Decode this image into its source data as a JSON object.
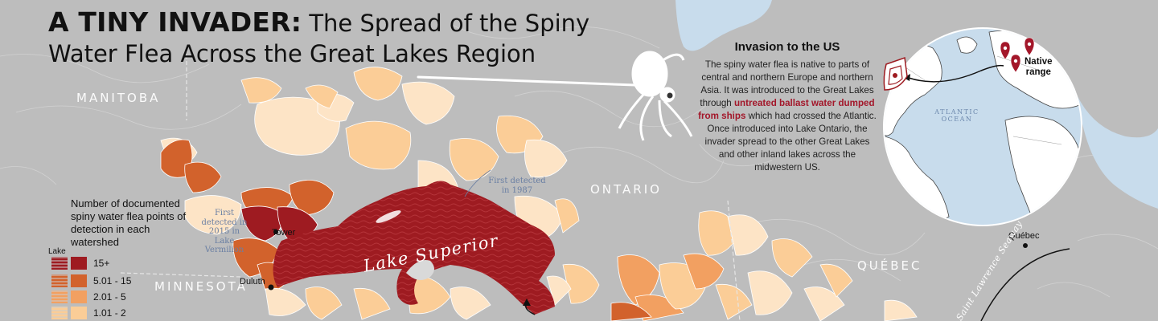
{
  "title": {
    "bold": "A TINY INVADER:",
    "line1_rest": " The Spread of the Spiny",
    "line2": "Water Flea Across the Great Lakes Region"
  },
  "regions": {
    "manitoba": "MANITOBA",
    "ontario": "ONTARIO",
    "quebec": "QUÉBEC",
    "minnesota": "MINNESOTA"
  },
  "lake_label": "Lake Superior",
  "annotations": {
    "first_detected_1987_line1": "First detected",
    "first_detected_1987_line2": "in 1987",
    "vermilion_line1": "First",
    "vermilion_line2": "detected in",
    "vermilion_line3": "2015 in Lake",
    "vermilion_line4": "Vermilion"
  },
  "cities": {
    "tower": "Tower",
    "duluth": "Duluth",
    "quebec_city": "Québec"
  },
  "seaway": "Saint Lawrence Seaway",
  "legend": {
    "title": "Number of documented spiny water flea points of detection in each watershed",
    "lake_label": "Lake",
    "items": [
      {
        "label": "15+",
        "color": "#9e1b21"
      },
      {
        "label": "5.01 - 15",
        "color": "#d2622c"
      },
      {
        "label": "2.01 - 5",
        "color": "#f2a061"
      },
      {
        "label": "1.01 - 2",
        "color": "#fbcd97"
      }
    ]
  },
  "info": {
    "heading": "Invasion to the US",
    "text_before": "The spiny water flea is native to parts of central and northern Europe and northern Asia. It was introduced to the Great Lakes through ",
    "highlight": "untreated ballast water dumped from ships",
    "text_after": " which had crossed the Atlantic. Once introduced into Lake Ontario, the invader spread to the other Great Lakes and other inland lakes across the midwestern US."
  },
  "globe": {
    "ocean_line1": "ATLANTIC",
    "ocean_line2": "OCEAN",
    "native_line1": "Native",
    "native_line2": "range"
  },
  "colors": {
    "background": "#bdbdbd",
    "water": "#c8dcec",
    "high": "#9e1b21",
    "mid": "#d2622c",
    "low": "#f2a061",
    "lowest": "#fbcd97",
    "pale": "#fde4c6",
    "highlight_text": "#a3172a"
  },
  "icons": {
    "pin": "map-pin-icon",
    "flea": "spiny-water-flea-illustration"
  }
}
